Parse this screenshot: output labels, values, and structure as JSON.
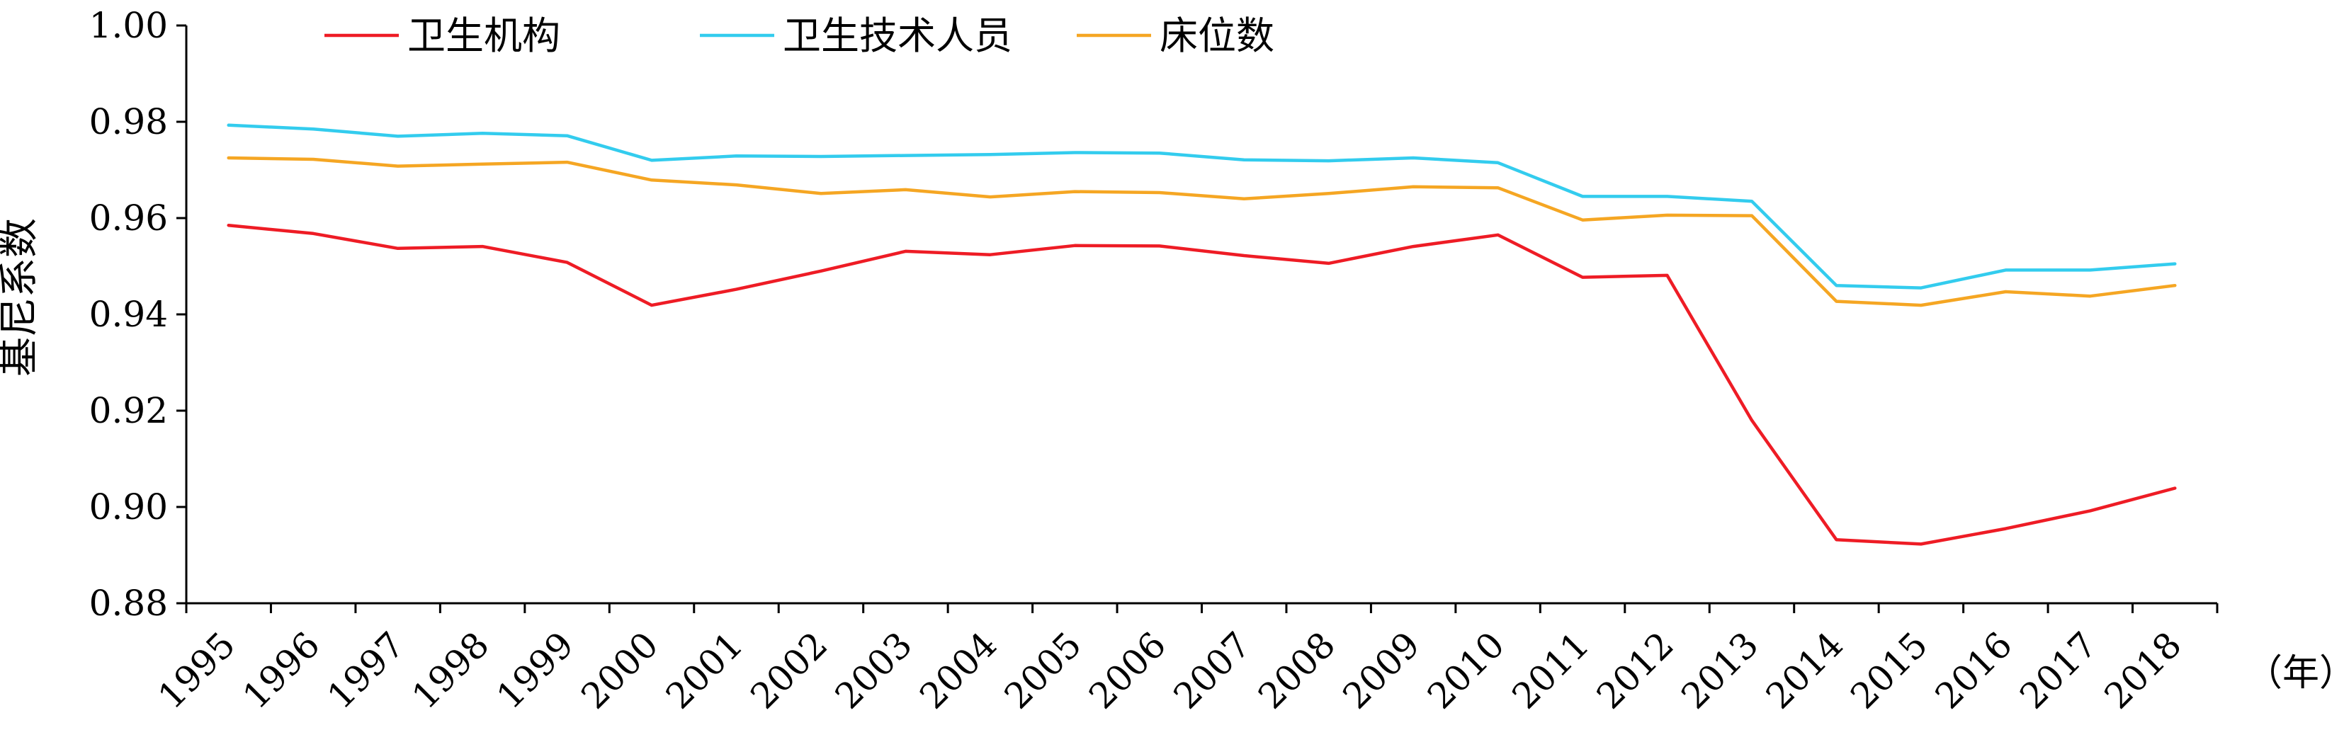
{
  "chart_data": {
    "type": "line",
    "title": "",
    "xlabel": "",
    "x_unit_label": "（年）",
    "ylabel": "基尼系数",
    "ylim": [
      0.88,
      1.0
    ],
    "yticks": [
      "0.88",
      "0.90",
      "0.92",
      "0.94",
      "0.96",
      "0.98",
      "1.00"
    ],
    "grid": false,
    "legend_position": "top-left",
    "categories": [
      "1995",
      "1996",
      "1997",
      "1998",
      "1999",
      "2000",
      "2001",
      "2002",
      "2003",
      "2004",
      "2005",
      "2006",
      "2007",
      "2008",
      "2009",
      "2010",
      "2011",
      "2012",
      "2013",
      "2014",
      "2015",
      "2016",
      "2017",
      "2018"
    ],
    "series": [
      {
        "name": "卫生机构",
        "color": "#ee1c25",
        "values": [
          0.9585,
          0.9568,
          0.9537,
          0.9541,
          0.9508,
          0.9419,
          0.9452,
          0.949,
          0.9531,
          0.9524,
          0.9543,
          0.9542,
          0.9522,
          0.9506,
          0.9541,
          0.9565,
          0.9477,
          0.9481,
          0.918,
          0.8932,
          0.8923,
          0.8955,
          0.8992,
          0.9039
        ]
      },
      {
        "name": "卫生技术人员",
        "color": "#33ccee",
        "values": [
          0.9793,
          0.9785,
          0.977,
          0.9776,
          0.9771,
          0.972,
          0.9729,
          0.9728,
          0.973,
          0.9732,
          0.9736,
          0.9735,
          0.9721,
          0.9719,
          0.9725,
          0.9715,
          0.9645,
          0.9645,
          0.9635,
          0.946,
          0.9455,
          0.9492,
          0.9492,
          0.9505
        ]
      },
      {
        "name": "床位数",
        "color": "#f5a623",
        "values": [
          0.9725,
          0.9722,
          0.9708,
          0.9712,
          0.9716,
          0.9679,
          0.9669,
          0.9651,
          0.9659,
          0.9644,
          0.9655,
          0.9653,
          0.964,
          0.9651,
          0.9665,
          0.9663,
          0.9596,
          0.9606,
          0.9605,
          0.9427,
          0.9419,
          0.9447,
          0.9438,
          0.946
        ]
      }
    ]
  }
}
